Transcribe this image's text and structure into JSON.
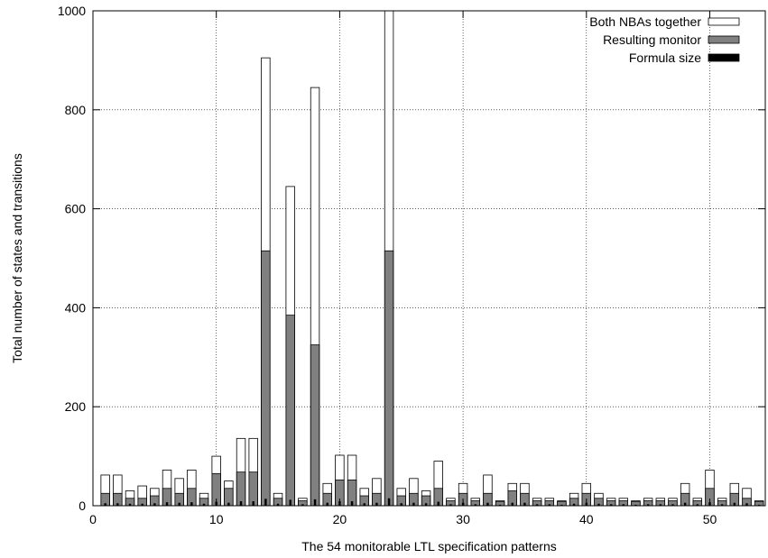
{
  "chart_data": {
    "type": "bar",
    "xlabel": "The 54 monitorable LTL specification patterns",
    "ylabel": "Total number of states and transitions",
    "xlim": [
      0,
      54.5
    ],
    "ylim": [
      0,
      1000
    ],
    "x_ticks": [
      0,
      10,
      20,
      30,
      40,
      50
    ],
    "y_ticks": [
      0,
      200,
      400,
      600,
      800,
      1000
    ],
    "grid": true,
    "legend_position": "top-right",
    "x": [
      1,
      2,
      3,
      4,
      5,
      6,
      7,
      8,
      9,
      10,
      11,
      12,
      13,
      14,
      15,
      16,
      17,
      18,
      19,
      20,
      21,
      22,
      23,
      24,
      25,
      26,
      27,
      28,
      29,
      30,
      31,
      32,
      33,
      34,
      35,
      36,
      37,
      38,
      39,
      40,
      41,
      42,
      43,
      44,
      45,
      46,
      47,
      48,
      49,
      50,
      51,
      52,
      53,
      54
    ],
    "series": [
      {
        "name": "Both NBAs together",
        "color": "#ffffff",
        "values": [
          62,
          62,
          30,
          40,
          35,
          72,
          55,
          72,
          25,
          100,
          50,
          136,
          136,
          905,
          25,
          645,
          15,
          845,
          45,
          102,
          102,
          35,
          55,
          1000,
          35,
          55,
          30,
          90,
          15,
          45,
          15,
          62,
          10,
          45,
          45,
          15,
          15,
          10,
          25,
          45,
          25,
          15,
          15,
          10,
          15,
          15,
          15,
          45,
          15,
          72,
          15,
          45,
          35,
          10
        ]
      },
      {
        "name": "Resulting monitor",
        "color": "#808080",
        "values": [
          25,
          25,
          15,
          15,
          20,
          35,
          25,
          35,
          15,
          65,
          35,
          68,
          68,
          515,
          15,
          385,
          10,
          325,
          25,
          52,
          52,
          20,
          25,
          515,
          20,
          25,
          20,
          35,
          10,
          25,
          10,
          25,
          8,
          30,
          25,
          10,
          10,
          8,
          15,
          25,
          15,
          10,
          10,
          8,
          10,
          10,
          10,
          25,
          10,
          35,
          10,
          25,
          15,
          8
        ]
      },
      {
        "name": "Formula size",
        "color": "#000000",
        "values": [
          5,
          5,
          4,
          4,
          5,
          7,
          6,
          7,
          4,
          8,
          6,
          9,
          9,
          14,
          4,
          12,
          3,
          13,
          6,
          9,
          9,
          5,
          6,
          15,
          5,
          6,
          5,
          8,
          3,
          6,
          3,
          6,
          2,
          6,
          6,
          3,
          3,
          2,
          4,
          6,
          4,
          3,
          3,
          2,
          3,
          3,
          3,
          6,
          3,
          7,
          3,
          6,
          5,
          2
        ]
      }
    ]
  }
}
